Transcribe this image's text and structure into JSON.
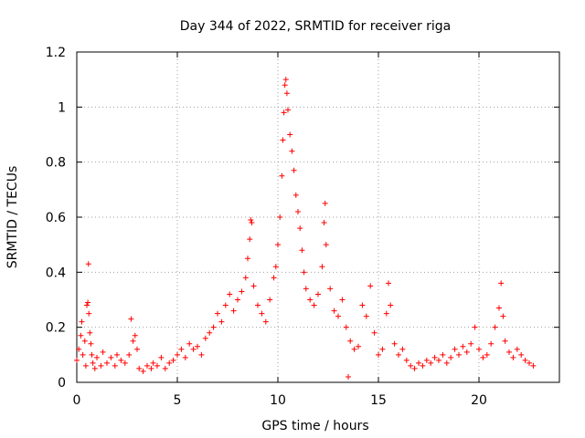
{
  "chart_data": {
    "type": "scatter",
    "title": "Day 344 of 2022, SRMTID for receiver riga",
    "xlabel": "GPS time / hours",
    "ylabel": "SRMTID / TECUs",
    "xlim": [
      0,
      24
    ],
    "ylim": [
      0,
      1.2
    ],
    "xticks": [
      0,
      5,
      10,
      15,
      20
    ],
    "xtick_labels": [
      "0",
      "5",
      "10",
      "15",
      "20"
    ],
    "yticks": [
      0,
      0.2,
      0.4,
      0.6,
      0.8,
      1.0,
      1.2
    ],
    "ytick_labels": [
      "0",
      "0.2",
      "0.4",
      "0.6",
      "0.8",
      "1",
      "1.2"
    ],
    "grid": true,
    "marker": "+",
    "color": "#ff0000",
    "series": [
      {
        "name": "SRMTID",
        "points": [
          [
            0.0,
            0.08
          ],
          [
            0.1,
            0.12
          ],
          [
            0.2,
            0.17
          ],
          [
            0.25,
            0.22
          ],
          [
            0.3,
            0.1
          ],
          [
            0.4,
            0.15
          ],
          [
            0.45,
            0.06
          ],
          [
            0.5,
            0.28
          ],
          [
            0.55,
            0.29
          ],
          [
            0.58,
            0.43
          ],
          [
            0.6,
            0.25
          ],
          [
            0.65,
            0.18
          ],
          [
            0.7,
            0.14
          ],
          [
            0.75,
            0.1
          ],
          [
            0.8,
            0.07
          ],
          [
            0.9,
            0.05
          ],
          [
            1.0,
            0.09
          ],
          [
            1.2,
            0.06
          ],
          [
            1.3,
            0.11
          ],
          [
            1.5,
            0.07
          ],
          [
            1.7,
            0.09
          ],
          [
            1.9,
            0.06
          ],
          [
            2.0,
            0.1
          ],
          [
            2.2,
            0.08
          ],
          [
            2.4,
            0.07
          ],
          [
            2.6,
            0.1
          ],
          [
            2.7,
            0.23
          ],
          [
            2.8,
            0.15
          ],
          [
            2.9,
            0.17
          ],
          [
            3.0,
            0.12
          ],
          [
            3.1,
            0.05
          ],
          [
            3.3,
            0.04
          ],
          [
            3.5,
            0.06
          ],
          [
            3.7,
            0.05
          ],
          [
            3.8,
            0.07
          ],
          [
            4.0,
            0.06
          ],
          [
            4.2,
            0.09
          ],
          [
            4.4,
            0.05
          ],
          [
            4.6,
            0.07
          ],
          [
            4.8,
            0.08
          ],
          [
            5.0,
            0.1
          ],
          [
            5.2,
            0.12
          ],
          [
            5.4,
            0.09
          ],
          [
            5.6,
            0.14
          ],
          [
            5.8,
            0.12
          ],
          [
            6.0,
            0.13
          ],
          [
            6.2,
            0.1
          ],
          [
            6.4,
            0.16
          ],
          [
            6.6,
            0.18
          ],
          [
            6.8,
            0.2
          ],
          [
            7.0,
            0.25
          ],
          [
            7.2,
            0.22
          ],
          [
            7.4,
            0.28
          ],
          [
            7.6,
            0.32
          ],
          [
            7.8,
            0.26
          ],
          [
            8.0,
            0.3
          ],
          [
            8.2,
            0.33
          ],
          [
            8.4,
            0.38
          ],
          [
            8.5,
            0.45
          ],
          [
            8.6,
            0.52
          ],
          [
            8.65,
            0.59
          ],
          [
            8.7,
            0.58
          ],
          [
            8.8,
            0.35
          ],
          [
            9.0,
            0.28
          ],
          [
            9.2,
            0.25
          ],
          [
            9.4,
            0.22
          ],
          [
            9.6,
            0.3
          ],
          [
            9.8,
            0.38
          ],
          [
            9.9,
            0.42
          ],
          [
            10.0,
            0.5
          ],
          [
            10.1,
            0.6
          ],
          [
            10.2,
            0.75
          ],
          [
            10.25,
            0.88
          ],
          [
            10.3,
            0.98
          ],
          [
            10.35,
            1.08
          ],
          [
            10.4,
            1.1
          ],
          [
            10.45,
            1.05
          ],
          [
            10.5,
            0.99
          ],
          [
            10.6,
            0.9
          ],
          [
            10.7,
            0.84
          ],
          [
            10.8,
            0.77
          ],
          [
            10.9,
            0.68
          ],
          [
            11.0,
            0.62
          ],
          [
            11.1,
            0.56
          ],
          [
            11.2,
            0.48
          ],
          [
            11.3,
            0.4
          ],
          [
            11.4,
            0.34
          ],
          [
            11.6,
            0.3
          ],
          [
            11.8,
            0.28
          ],
          [
            12.0,
            0.32
          ],
          [
            12.2,
            0.42
          ],
          [
            12.3,
            0.58
          ],
          [
            12.35,
            0.65
          ],
          [
            12.4,
            0.5
          ],
          [
            12.6,
            0.34
          ],
          [
            12.8,
            0.26
          ],
          [
            13.0,
            0.24
          ],
          [
            13.2,
            0.3
          ],
          [
            13.4,
            0.2
          ],
          [
            13.5,
            0.02
          ],
          [
            13.6,
            0.15
          ],
          [
            13.8,
            0.12
          ],
          [
            14.0,
            0.13
          ],
          [
            14.2,
            0.28
          ],
          [
            14.4,
            0.24
          ],
          [
            14.6,
            0.35
          ],
          [
            14.8,
            0.18
          ],
          [
            15.0,
            0.1
          ],
          [
            15.2,
            0.12
          ],
          [
            15.4,
            0.25
          ],
          [
            15.5,
            0.36
          ],
          [
            15.6,
            0.28
          ],
          [
            15.8,
            0.14
          ],
          [
            16.0,
            0.1
          ],
          [
            16.2,
            0.12
          ],
          [
            16.4,
            0.08
          ],
          [
            16.6,
            0.06
          ],
          [
            16.8,
            0.05
          ],
          [
            17.0,
            0.07
          ],
          [
            17.2,
            0.06
          ],
          [
            17.4,
            0.08
          ],
          [
            17.6,
            0.07
          ],
          [
            17.8,
            0.09
          ],
          [
            18.0,
            0.08
          ],
          [
            18.2,
            0.1
          ],
          [
            18.4,
            0.07
          ],
          [
            18.6,
            0.09
          ],
          [
            18.8,
            0.12
          ],
          [
            19.0,
            0.1
          ],
          [
            19.2,
            0.13
          ],
          [
            19.4,
            0.11
          ],
          [
            19.6,
            0.14
          ],
          [
            19.8,
            0.2
          ],
          [
            20.0,
            0.12
          ],
          [
            20.2,
            0.09
          ],
          [
            20.4,
            0.1
          ],
          [
            20.6,
            0.14
          ],
          [
            20.8,
            0.2
          ],
          [
            21.0,
            0.27
          ],
          [
            21.1,
            0.36
          ],
          [
            21.2,
            0.24
          ],
          [
            21.3,
            0.15
          ],
          [
            21.5,
            0.11
          ],
          [
            21.7,
            0.09
          ],
          [
            21.9,
            0.12
          ],
          [
            22.1,
            0.1
          ],
          [
            22.3,
            0.08
          ],
          [
            22.5,
            0.07
          ],
          [
            22.7,
            0.06
          ]
        ]
      }
    ]
  }
}
